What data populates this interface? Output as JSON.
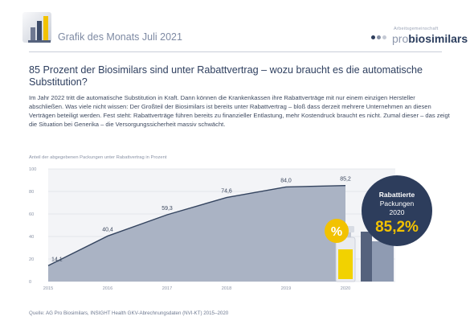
{
  "header": {
    "title": "Grafik des Monats Juli 2021",
    "brand_prefix": "pro",
    "brand_name": "biosimilars",
    "brand_tagline": "Arbeitsgemeinschaft"
  },
  "article": {
    "headline": "85 Prozent der Biosimilars sind unter Rabattvertrag – wozu braucht es die automatische Substitution?",
    "intro": "Im Jahr 2022 tritt die automatische Substitution in Kraft. Dann können die Krankenkassen ihre Rabattverträge mit nur einem einzigen Hersteller abschließen. Was viele nicht wissen: Der Großteil der Biosimilars ist bereits unter Rabattvertrag – bloß dass derzeit mehrere Unternehmen an diesen Verträgen beteiligt werden. Fest steht: Rabattverträge führen bereits zu finanzieller Entlastung, mehr Kostendruck braucht es nicht. Zumal dieser – das zeigt die Situation bei Generika – die Versorgungssicherheit massiv schwächt."
  },
  "chart_data": {
    "type": "area",
    "title": "",
    "ylabel": "Anteil der abgegebenen Packungen unter Rabattvertrag in Prozent",
    "xlabel": "",
    "x": [
      "2015",
      "2016",
      "2017",
      "2018",
      "2019",
      "2020"
    ],
    "series": [
      {
        "values": [
          14.1,
          40.4,
          59.3,
          74.6,
          84.0,
          85.2
        ]
      }
    ],
    "data_labels": [
      "14,1",
      "40,4",
      "59,3",
      "74,6",
      "84,0",
      "85,2"
    ],
    "yticks": [
      "0",
      "20",
      "40",
      "60",
      "80",
      "100"
    ],
    "ylim": [
      0,
      100
    ],
    "grid": true,
    "callout": {
      "line1": "Rabattierte",
      "line2": "Packungen",
      "line3": "2020",
      "value": "85,2%",
      "badge": "%"
    },
    "colors": {
      "area": "#aab3c4",
      "line": "#34445f",
      "grid": "#d3d7df",
      "axis_bg": "#f2f3f6",
      "circle": "#2d3d5c",
      "accent": "#f2c200",
      "value_text": "#f2c200"
    }
  },
  "source": {
    "label": "Quelle:",
    "text": "AG Pro Biosimilars, INSIGHT Health GKV-Abrechnungsdaten (NVI-KT) 2015–2020"
  }
}
